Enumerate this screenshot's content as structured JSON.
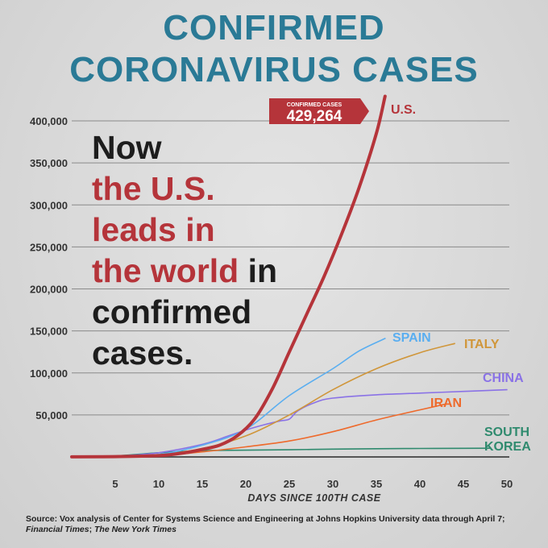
{
  "title": {
    "line1": "CONFIRMED",
    "line2": "CORONAVIRUS CASES"
  },
  "headline": {
    "l1": "Now",
    "l2": "the U.S.",
    "l3": "leads in",
    "l4a": "the world",
    "l4b": " in",
    "l5": "confirmed",
    "l6": "cases."
  },
  "callout": {
    "label": "CONFIRMED CASES",
    "value": "429,264"
  },
  "source": {
    "part1": "Source: Vox analysis of Center for Systems Science and Engineering at Johns Hopkins University data through April 7; ",
    "italic1": "Financial Times",
    "sep": "; ",
    "italic2": "The New York Times"
  },
  "colors": {
    "us": "#b5343a",
    "spain": "#5aaef0",
    "italic_placeholder": "",
    "italy": "#d0963a",
    "china": "#8a72e6",
    "iran": "#ee6a2c",
    "south_korea": "#2f8a6e",
    "title": "#2a7a96",
    "grid": "#8a8a8a"
  },
  "chart_data": {
    "type": "line",
    "title": "CONFIRMED CORONAVIRUS CASES",
    "xlabel": "DAYS SINCE 100TH CASE",
    "ylabel": "",
    "xlim": [
      0,
      50
    ],
    "ylim": [
      0,
      400000
    ],
    "x_ticks": [
      5,
      10,
      15,
      20,
      25,
      30,
      35,
      40,
      45,
      50
    ],
    "y_ticks": [
      50000,
      100000,
      150000,
      200000,
      250000,
      300000,
      350000,
      400000
    ],
    "y_tick_labels": [
      "50,000",
      "100,000",
      "150,000",
      "200,000",
      "250,000",
      "300,000",
      "350,000",
      "400,000"
    ],
    "grid": true,
    "series": [
      {
        "name": "SOUTH KOREA",
        "color": "#2f8a6e",
        "points": [
          [
            0,
            100
          ],
          [
            5,
            1200
          ],
          [
            10,
            5000
          ],
          [
            15,
            7500
          ],
          [
            20,
            8100
          ],
          [
            25,
            8500
          ],
          [
            30,
            9300
          ],
          [
            35,
            9800
          ],
          [
            40,
            10100
          ],
          [
            45,
            10300
          ],
          [
            48,
            10400
          ]
        ]
      },
      {
        "name": "CHINA",
        "color": "#8a72e6",
        "points": [
          [
            0,
            200
          ],
          [
            5,
            900
          ],
          [
            10,
            5000
          ],
          [
            15,
            15000
          ],
          [
            18,
            25000
          ],
          [
            20,
            32000
          ],
          [
            22,
            38000
          ],
          [
            24,
            43000
          ],
          [
            25,
            45000
          ],
          [
            26,
            55000
          ],
          [
            28,
            65000
          ],
          [
            30,
            70000
          ],
          [
            35,
            74000
          ],
          [
            40,
            76000
          ],
          [
            45,
            78000
          ],
          [
            50,
            80000
          ]
        ]
      },
      {
        "name": "IRAN",
        "color": "#ee6a2c",
        "points": [
          [
            0,
            100
          ],
          [
            5,
            600
          ],
          [
            10,
            1500
          ],
          [
            15,
            6000
          ],
          [
            20,
            12000
          ],
          [
            25,
            19000
          ],
          [
            30,
            30000
          ],
          [
            35,
            44000
          ],
          [
            40,
            56000
          ],
          [
            43,
            63000
          ]
        ]
      },
      {
        "name": "ITALY",
        "color": "#d0963a",
        "points": [
          [
            0,
            150
          ],
          [
            5,
            1000
          ],
          [
            10,
            3000
          ],
          [
            15,
            10000
          ],
          [
            20,
            25000
          ],
          [
            25,
            50000
          ],
          [
            30,
            80000
          ],
          [
            35,
            105000
          ],
          [
            40,
            124000
          ],
          [
            44,
            135000
          ]
        ]
      },
      {
        "name": "SPAIN",
        "color": "#5aaef0",
        "points": [
          [
            0,
            100
          ],
          [
            5,
            700
          ],
          [
            10,
            3000
          ],
          [
            15,
            14000
          ],
          [
            20,
            33000
          ],
          [
            25,
            73000
          ],
          [
            30,
            105000
          ],
          [
            33,
            126000
          ],
          [
            36,
            141000
          ]
        ]
      },
      {
        "name": "U.S.",
        "color": "#b5343a",
        "points": [
          [
            0,
            100
          ],
          [
            5,
            400
          ],
          [
            10,
            1500
          ],
          [
            13,
            5000
          ],
          [
            15,
            9000
          ],
          [
            17,
            14000
          ],
          [
            19,
            25000
          ],
          [
            21,
            45000
          ],
          [
            23,
            80000
          ],
          [
            25,
            125000
          ],
          [
            27,
            170000
          ],
          [
            29,
            215000
          ],
          [
            31,
            265000
          ],
          [
            33,
            320000
          ],
          [
            35,
            385000
          ],
          [
            36,
            429264
          ]
        ]
      }
    ],
    "annotations": [
      {
        "text": "U.S.",
        "series": "U.S."
      },
      {
        "text": "CONFIRMED CASES 429,264",
        "series": "U.S."
      }
    ]
  }
}
